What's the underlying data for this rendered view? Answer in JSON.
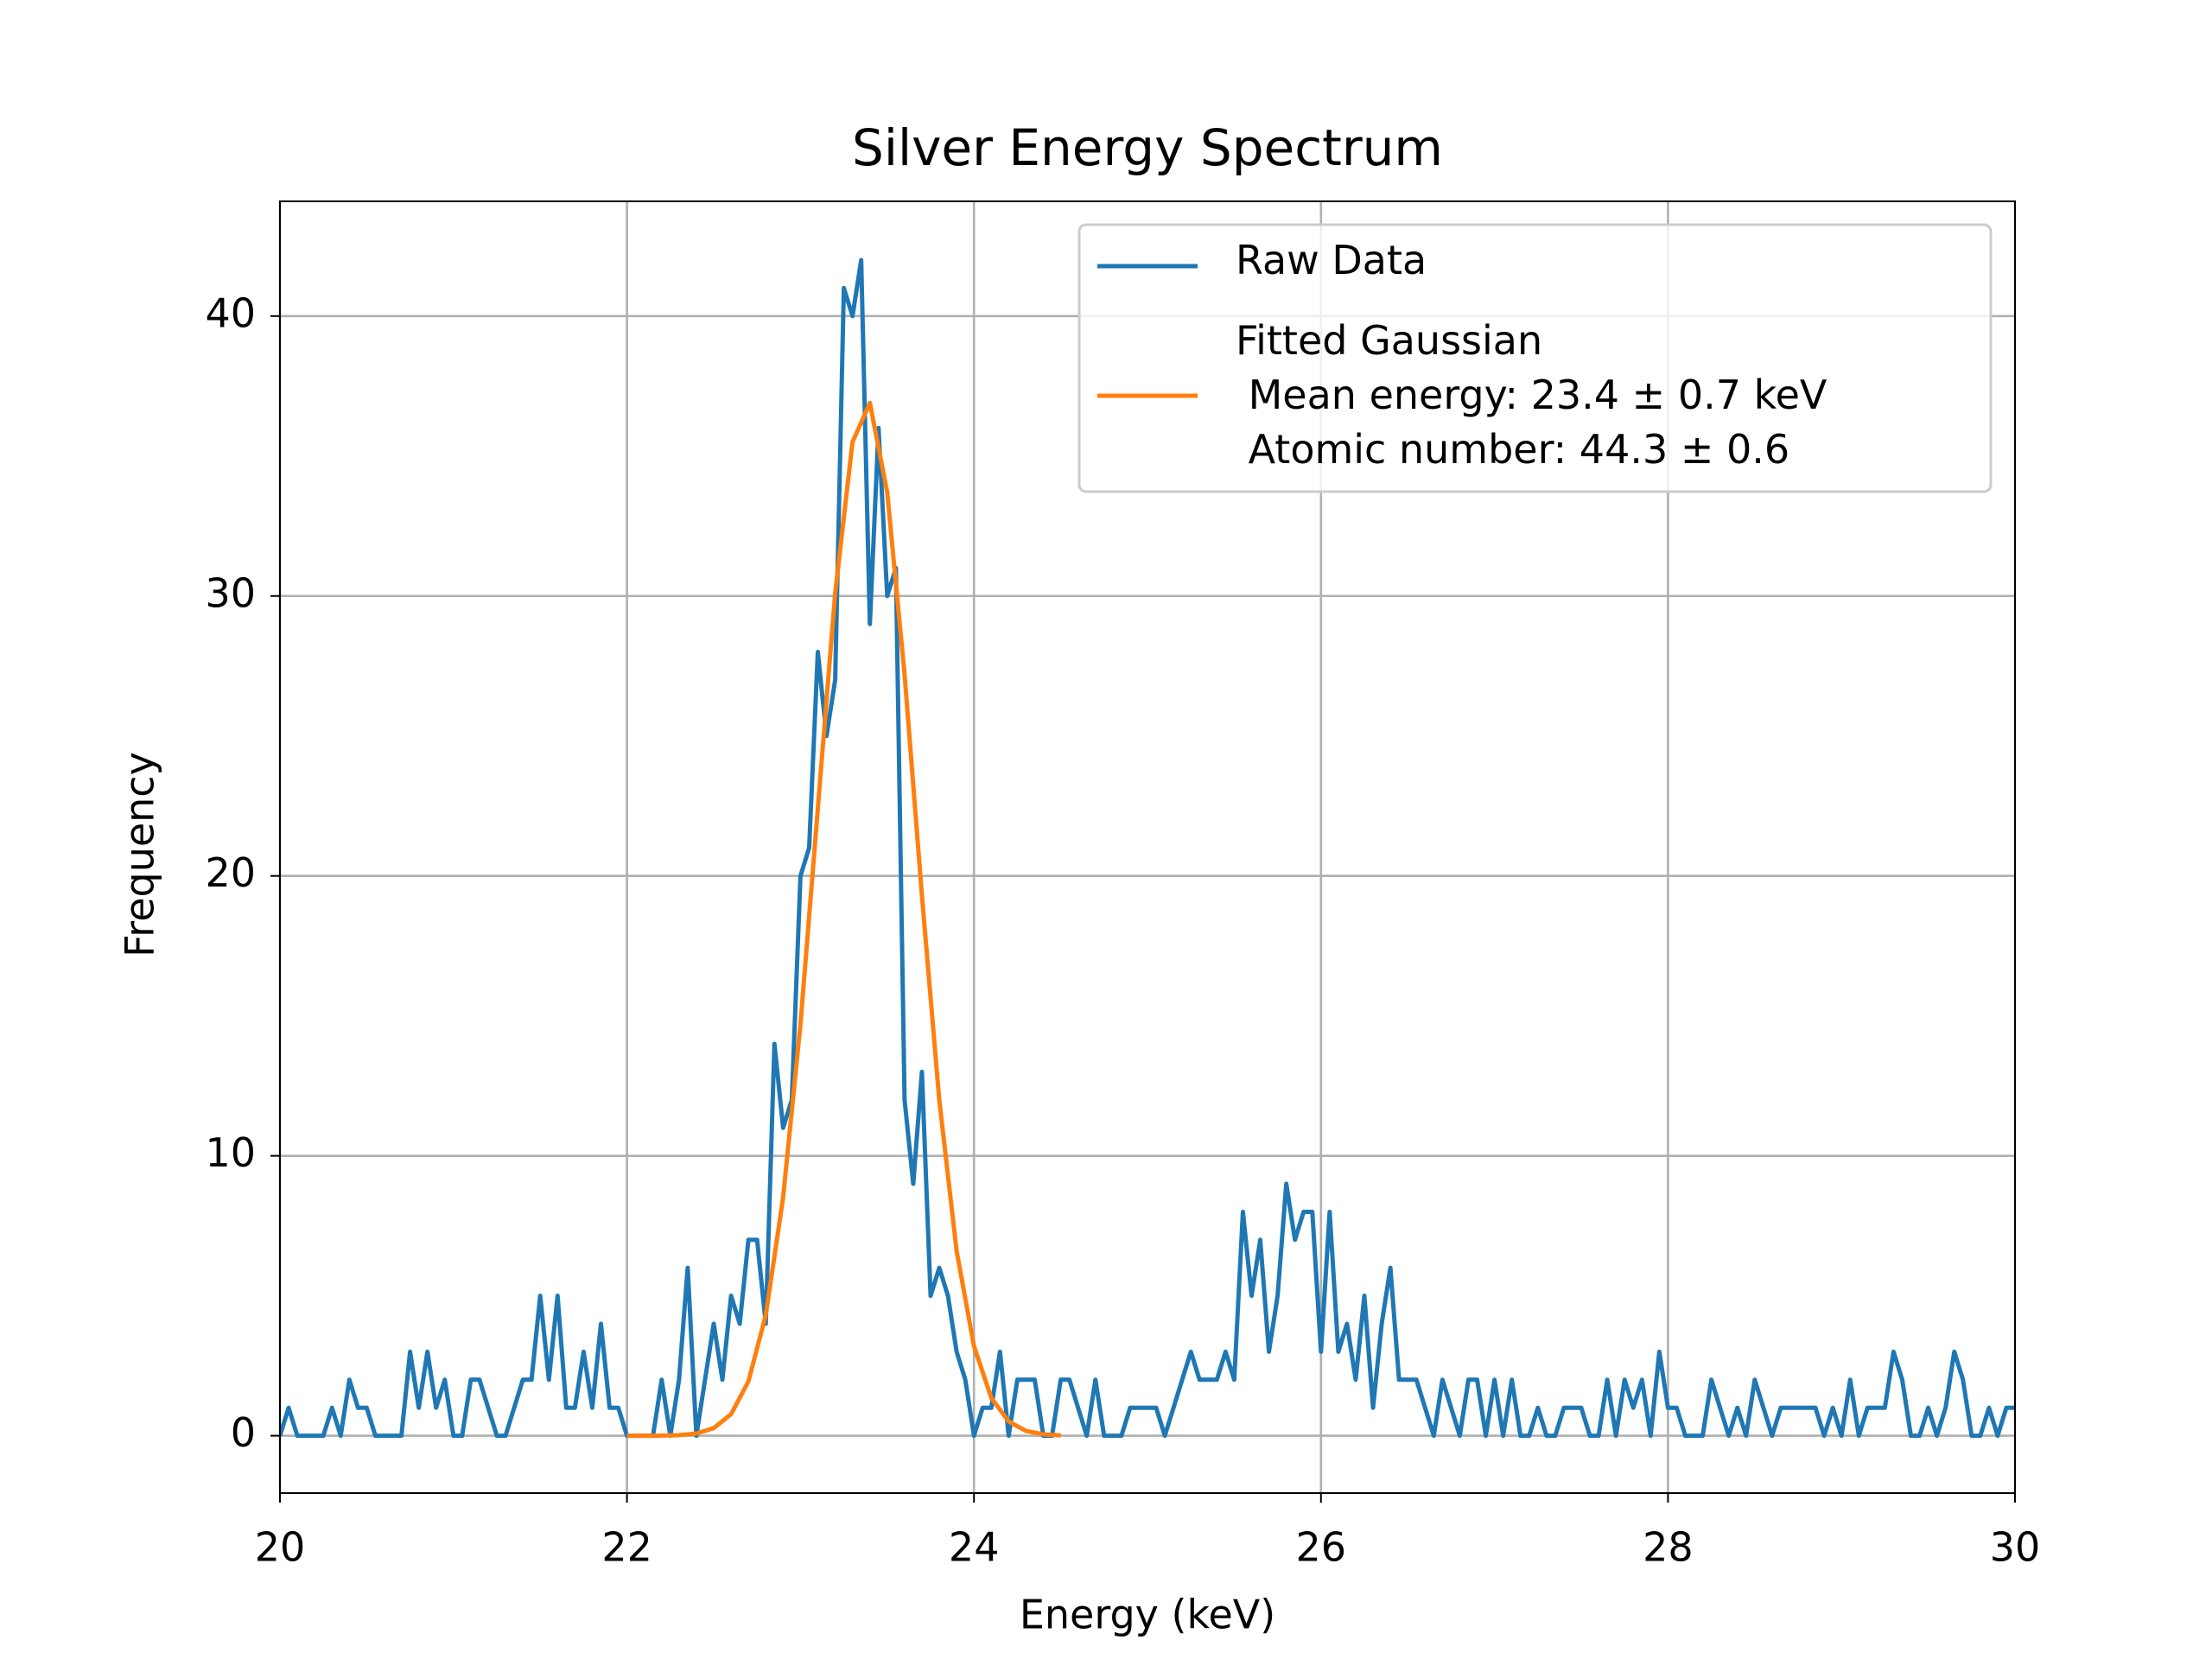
{
  "chart_data": {
    "type": "line",
    "title": "Silver Energy Spectrum",
    "x_label": "Energy (keV)",
    "y_label": "Frequency",
    "xlim": [
      20,
      30
    ],
    "ylim": [
      -2.05,
      44.1
    ],
    "xticks": [
      20,
      22,
      24,
      26,
      28,
      30
    ],
    "yticks": [
      0,
      10,
      20,
      30,
      40
    ],
    "grid": true,
    "legend": "upper right",
    "series": [
      {
        "name": "Raw Data",
        "color": "#1f77b4",
        "x": [
          20,
          20.05,
          20.1,
          20.15,
          20.2,
          20.25,
          20.3,
          20.35,
          20.4,
          20.45,
          20.5,
          20.55,
          20.6,
          20.65,
          20.7,
          20.75,
          20.8,
          20.85,
          20.9,
          20.95,
          21,
          21.05,
          21.1,
          21.15,
          21.2,
          21.25,
          21.3,
          21.35,
          21.4,
          21.45,
          21.5,
          21.55,
          21.6,
          21.65,
          21.7,
          21.75,
          21.8,
          21.85,
          21.9,
          21.95,
          22,
          22.05,
          22.1,
          22.15,
          22.2,
          22.25,
          22.3,
          22.35,
          22.4,
          22.45,
          22.5,
          22.55,
          22.6,
          22.65,
          22.7,
          22.75,
          22.8,
          22.85,
          22.9,
          22.95,
          23,
          23.05,
          23.1,
          23.15,
          23.2,
          23.25,
          23.3,
          23.35,
          23.4,
          23.45,
          23.5,
          23.55,
          23.6,
          23.65,
          23.7,
          23.75,
          23.8,
          23.85,
          23.9,
          23.95,
          24,
          24.05,
          24.1,
          24.15,
          24.2,
          24.25,
          24.3,
          24.35,
          24.4,
          24.45,
          24.5,
          24.55,
          24.6,
          24.65,
          24.7,
          24.75,
          24.8,
          24.85,
          24.9,
          24.95,
          25,
          25.05,
          25.1,
          25.15,
          25.2,
          25.25,
          25.3,
          25.35,
          25.4,
          25.45,
          25.5,
          25.55,
          25.6,
          25.65,
          25.7,
          25.75,
          25.8,
          25.85,
          25.9,
          25.95,
          26,
          26.05,
          26.1,
          26.15,
          26.2,
          26.25,
          26.3,
          26.35,
          26.4,
          26.45,
          26.5,
          26.55,
          26.6,
          26.65,
          26.7,
          26.75,
          26.8,
          26.85,
          26.9,
          26.95,
          27,
          27.05,
          27.1,
          27.15,
          27.2,
          27.25,
          27.3,
          27.35,
          27.4,
          27.45,
          27.5,
          27.55,
          27.6,
          27.65,
          27.7,
          27.75,
          27.8,
          27.85,
          27.9,
          27.95,
          28,
          28.05,
          28.1,
          28.15,
          28.2,
          28.25,
          28.3,
          28.35,
          28.4,
          28.45,
          28.5,
          28.55,
          28.6,
          28.65,
          28.7,
          28.75,
          28.8,
          28.85,
          28.9,
          28.95,
          29,
          29.05,
          29.1,
          29.15,
          29.2,
          29.25,
          29.3,
          29.35,
          29.4,
          29.45,
          29.5,
          29.55,
          29.6,
          29.65,
          29.7,
          29.75,
          29.8,
          29.85,
          29.9,
          29.95,
          30
        ],
        "values": [
          0,
          1,
          0,
          0,
          0,
          0,
          1,
          0,
          2,
          1,
          1,
          0,
          0,
          0,
          0,
          3,
          1,
          3,
          1,
          2,
          0,
          0,
          2,
          2,
          1,
          0,
          0,
          1,
          2,
          2,
          5,
          2,
          5,
          1,
          1,
          3,
          1,
          4,
          1,
          1,
          0,
          0,
          0,
          0,
          2,
          0,
          2,
          6,
          0,
          2,
          4,
          2,
          5,
          4,
          7,
          7,
          4,
          14,
          11,
          12,
          20,
          21,
          28,
          25,
          27,
          41,
          40,
          42,
          29,
          36,
          30,
          31,
          12,
          9,
          13,
          5,
          6,
          5,
          3,
          2,
          0,
          1,
          1,
          3,
          0,
          2,
          2,
          2,
          0,
          0,
          2,
          2,
          1,
          0,
          2,
          0,
          0,
          0,
          1,
          1,
          1,
          1,
          0,
          1,
          2,
          3,
          2,
          2,
          2,
          3,
          2,
          8,
          5,
          7,
          3,
          5,
          9,
          7,
          8,
          8,
          3,
          8,
          3,
          4,
          2,
          5,
          1,
          4,
          6,
          2,
          2,
          2,
          1,
          0,
          2,
          1,
          0,
          2,
          2,
          0,
          2,
          0,
          2,
          0,
          0,
          1,
          0,
          0,
          1,
          1,
          1,
          0,
          0,
          2,
          0,
          2,
          1,
          2,
          0,
          3,
          1,
          1,
          0,
          0,
          0,
          2,
          1,
          0,
          1,
          0,
          2,
          1,
          0,
          1,
          1,
          1,
          1,
          1,
          0,
          1,
          0,
          2,
          0,
          1,
          1,
          1,
          3,
          2,
          0,
          0,
          1,
          0,
          1,
          3,
          2,
          0,
          0,
          1,
          0,
          1,
          1
        ]
      },
      {
        "name": "Fitted Gaussian\n Mean energy: 23.4 ± 0.7 keV\n Atomic number: 44.3 ± 0.6",
        "color": "#ff7f0e",
        "x": [
          22,
          22.1,
          22.2,
          22.3,
          22.4,
          22.5,
          22.6,
          22.7,
          22.8,
          22.9,
          23,
          23.1,
          23.2,
          23.3,
          23.4,
          23.5,
          23.6,
          23.7,
          23.8,
          23.9,
          24,
          24.1,
          24.2,
          24.3,
          24.4,
          24.5
        ],
        "values": [
          0,
          0,
          0.005,
          0.02,
          0.08,
          0.27,
          0.77,
          1.94,
          4.31,
          8.51,
          14.7,
          22.4,
          30.1,
          35.5,
          36.9,
          33.7,
          27.2,
          19.3,
          12,
          6.6,
          3.2,
          1.35,
          0.51,
          0.17,
          0.05,
          0.01
        ]
      }
    ]
  }
}
